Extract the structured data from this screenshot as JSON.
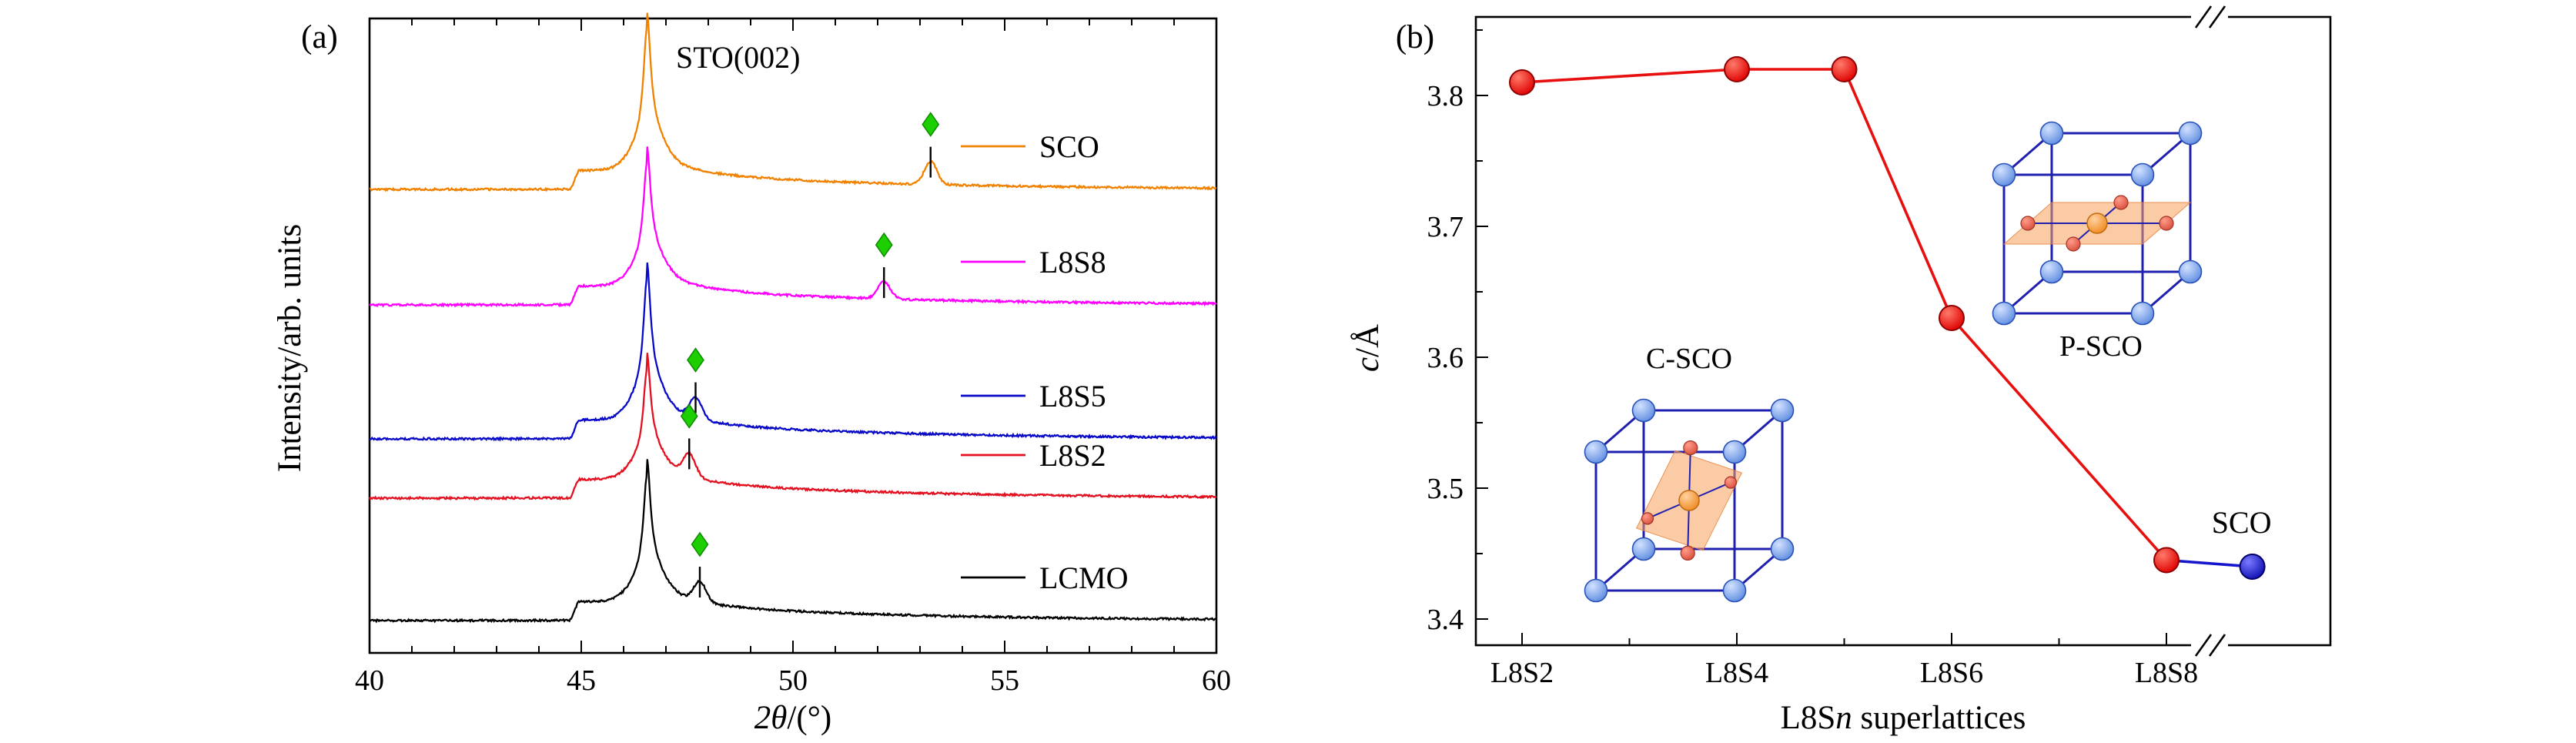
{
  "figure": {
    "background": "#ffffff"
  },
  "chart_data": [
    {
      "id": "panel_a",
      "type": "line",
      "panel_label": "(a)",
      "xlabel": "2θ/(°)",
      "xlabel_parts": [
        {
          "t": "2θ",
          "italic": true
        },
        {
          "t": "/(°)",
          "italic": false
        }
      ],
      "ylabel": "Intensity/arb. units",
      "xlim": [
        40,
        60
      ],
      "xticks": [
        40,
        45,
        50,
        55,
        60
      ],
      "grid": false,
      "annotation": "STO(002)",
      "substrate_peak_2theta": 46.55,
      "peak_marker": {
        "shape": "diamond",
        "color": "#1DCE00",
        "edge": "#0E8A00"
      },
      "series": [
        {
          "name": "SCO",
          "color": "#F08200",
          "film_peak_2theta": 53.25,
          "sto_peak_height": 185,
          "film_peak_height": 30
        },
        {
          "name": "L8S8",
          "color": "#FF00FF",
          "film_peak_2theta": 52.15,
          "sto_peak_height": 160,
          "film_peak_height": 22
        },
        {
          "name": "L8S5",
          "color": "#0909C8",
          "film_peak_2theta": 47.7,
          "sto_peak_height": 183,
          "film_peak_height": 28
        },
        {
          "name": "L8S2",
          "color": "#E31020",
          "film_peak_2theta": 47.55,
          "sto_peak_height": 142,
          "film_peak_height": 30
        },
        {
          "name": "LCMO",
          "color": "#000000",
          "film_peak_2theta": 47.8,
          "sto_peak_height": 164,
          "film_peak_height": 26
        }
      ]
    },
    {
      "id": "panel_b",
      "type": "scatter-line",
      "panel_label": "(b)",
      "xlabel": "L8Sn superlattices",
      "xlabel_parts": [
        {
          "t": "L8S",
          "italic": false
        },
        {
          "t": "n",
          "italic": true
        },
        {
          "t": " superlattices",
          "italic": false
        }
      ],
      "ylabel": "c/Å",
      "ylabel_parts": [
        {
          "t": "c",
          "italic": true
        },
        {
          "t": "/Å",
          "italic": false
        }
      ],
      "ylim": [
        3.4,
        3.85
      ],
      "yticks": [
        3.4,
        3.5,
        3.6,
        3.7,
        3.8
      ],
      "xtick_labels": [
        "L8S2",
        "L8S4",
        "L8S6",
        "L8S8"
      ],
      "xtick_values": [
        2,
        4,
        6,
        8
      ],
      "axis_break_after": "L8S8",
      "series": [
        {
          "name": "L8Sn superlattices",
          "color": "#E80F0F",
          "x_labels": [
            "L8S2",
            "L8S4",
            "L8S5",
            "L8S6",
            "L8S8"
          ],
          "x": [
            2,
            4,
            5,
            6,
            8
          ],
          "values": [
            3.81,
            3.82,
            3.82,
            3.63,
            3.445
          ]
        },
        {
          "name": "SCO",
          "color": "#1515CC",
          "x_labels": [
            "SCO"
          ],
          "x": [
            8.8
          ],
          "values": [
            3.44
          ]
        }
      ],
      "point_label": "SCO",
      "insets": [
        {
          "label": "C-SCO",
          "type": "c-axis"
        },
        {
          "label": "P-SCO",
          "type": "planar"
        }
      ]
    }
  ]
}
